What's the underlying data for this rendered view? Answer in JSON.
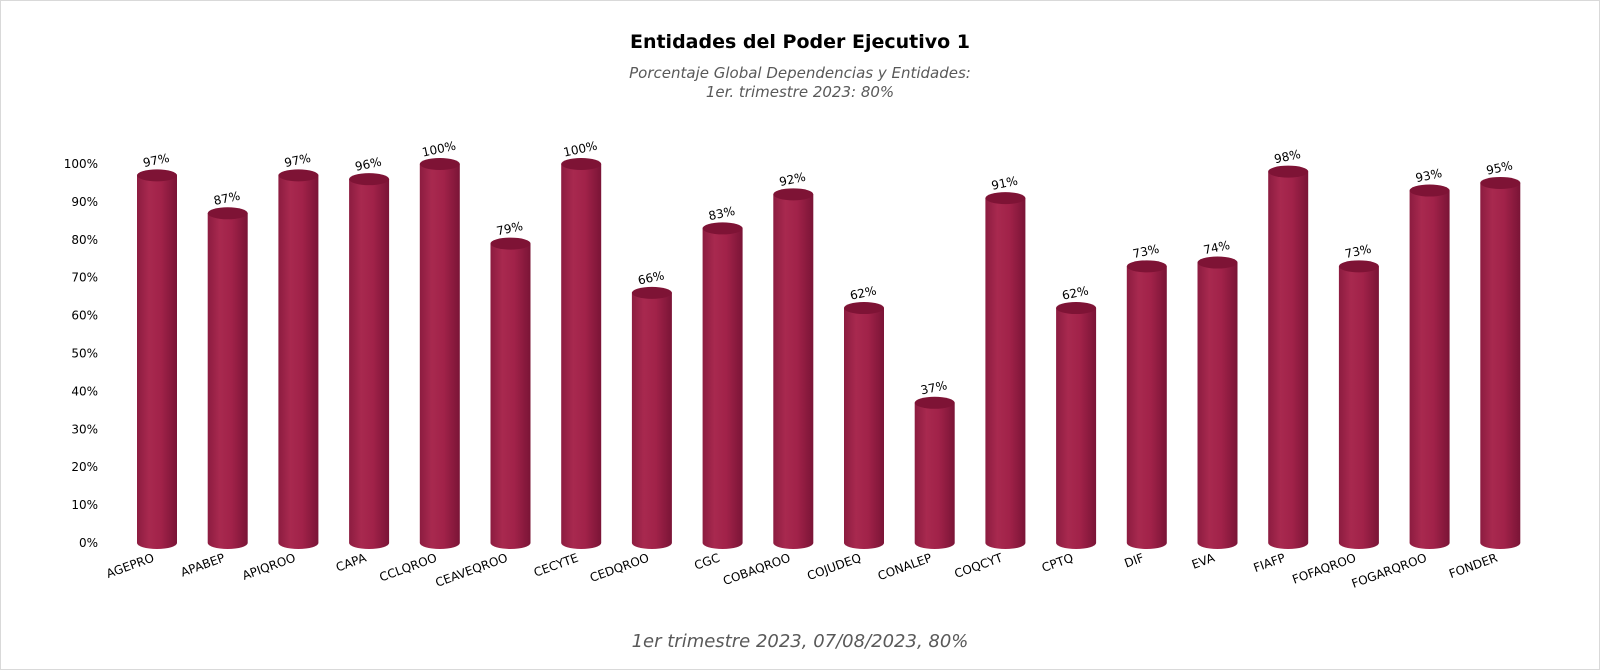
{
  "chart_data": {
    "type": "bar",
    "title": "Entidades del Poder Ejecutivo 1",
    "subtitle": [
      "Porcentaje Global  Dependencias y Entidades:",
      "1er. trimestre 2023: 80%"
    ],
    "footer": "1er trimestre  2023,  07/08/2023, 80%",
    "xlabel": "",
    "ylabel": "",
    "ylim": [
      0,
      100
    ],
    "yticks": [
      "0%",
      "10%",
      "20%",
      "30%",
      "40%",
      "50%",
      "60%",
      "70%",
      "80%",
      "90%",
      "100%"
    ],
    "grid": false,
    "legend": "none",
    "bar_shape": "cylinder",
    "bar_color": "#a3234b",
    "bar_top_color": "#7e1335",
    "categories": [
      "AGEPRO",
      "APABEP",
      "APIQROO",
      "CAPA",
      "CCLQROO",
      "CEAVEQROO",
      "CECYTE",
      "CEDQROO",
      "CGC",
      "COBAQROO",
      "COJUDEQ",
      "CONALEP",
      "COQCYT",
      "CPTQ",
      "DIF",
      "EVA",
      "FIAFP",
      "FOFAQROO",
      "FOGARQROO",
      "FONDER"
    ],
    "values": [
      97,
      87,
      97,
      96,
      100,
      79,
      100,
      66,
      83,
      92,
      62,
      37,
      91,
      62,
      73,
      74,
      98,
      73,
      93,
      95
    ],
    "data_labels": [
      "97%",
      "87%",
      "97%",
      "96%",
      "100%",
      "79%",
      "100%",
      "66%",
      "83%",
      "92%",
      "62%",
      "37%",
      "91%",
      "62%",
      "73%",
      "74%",
      "98%",
      "73%",
      "93%",
      "95%"
    ]
  }
}
